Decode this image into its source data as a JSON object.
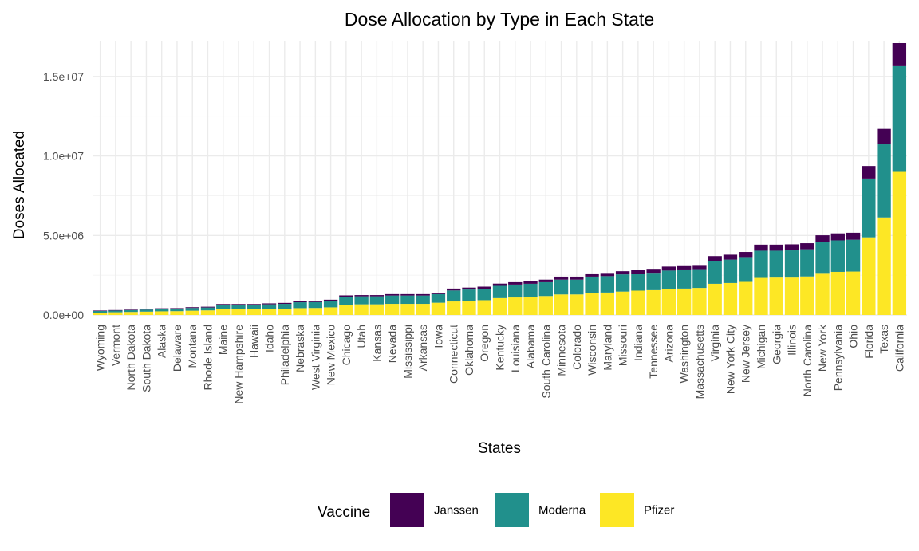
{
  "chart_data": {
    "type": "bar",
    "stacked": true,
    "title": "Dose Allocation by Type in Each State",
    "xlabel": "States",
    "ylabel": "Doses Allocated",
    "ylim": [
      0,
      17200000
    ],
    "yticks": [
      0,
      5000000,
      10000000,
      15000000
    ],
    "ytick_labels": [
      "0.0e+00",
      "5.0e+06",
      "1.0e+07",
      "1.5e+07"
    ],
    "grid": true,
    "legend_position": "bottom",
    "legend_title": "Vaccine",
    "categories": [
      "Wyoming",
      "Vermont",
      "North Dakota",
      "South Dakota",
      "Alaska",
      "Delaware",
      "Montana",
      "Rhode Island",
      "Maine",
      "New Hampshire",
      "Hawaii",
      "Idaho",
      "Philadelphia",
      "Nebraska",
      "West Virginia",
      "New Mexico",
      "Chicago",
      "Utah",
      "Kansas",
      "Nevada",
      "Mississippi",
      "Arkansas",
      "Iowa",
      "Connecticut",
      "Oklahoma",
      "Oregon",
      "Kentucky",
      "Louisiana",
      "Alabama",
      "South Carolina",
      "Minnesota",
      "Colorado",
      "Wisconsin",
      "Maryland",
      "Missouri",
      "Indiana",
      "Tennessee",
      "Arizona",
      "Washington",
      "Massachusetts",
      "Virginia",
      "New York City",
      "New Jersey",
      "Michigan",
      "Georgia",
      "Illinois",
      "North Carolina",
      "New York",
      "Pennsylvania",
      "Ohio",
      "Florida",
      "Texas",
      "California"
    ],
    "series": [
      {
        "name": "Pfizer",
        "color": "#fde725",
        "values": [
          150000,
          170000,
          190000,
          210000,
          230000,
          240000,
          270000,
          290000,
          360000,
          360000,
          360000,
          380000,
          400000,
          430000,
          440000,
          480000,
          650000,
          670000,
          670000,
          700000,
          700000,
          700000,
          770000,
          850000,
          900000,
          930000,
          1060000,
          1100000,
          1130000,
          1190000,
          1290000,
          1290000,
          1390000,
          1410000,
          1470000,
          1530000,
          1560000,
          1610000,
          1660000,
          1700000,
          1960000,
          2010000,
          2080000,
          2330000,
          2350000,
          2350000,
          2420000,
          2640000,
          2710000,
          2730000,
          4880000,
          6130000,
          9000000
        ]
      },
      {
        "name": "Moderna",
        "color": "#21908c",
        "values": [
          100000,
          110000,
          120000,
          130000,
          150000,
          150000,
          170000,
          180000,
          280000,
          280000,
          280000,
          290000,
          300000,
          370000,
          370000,
          410000,
          500000,
          500000,
          500000,
          520000,
          520000,
          520000,
          540000,
          690000,
          700000,
          720000,
          770000,
          810000,
          830000,
          870000,
          930000,
          930000,
          1020000,
          1030000,
          1080000,
          1070000,
          1090000,
          1180000,
          1200000,
          1180000,
          1450000,
          1470000,
          1560000,
          1710000,
          1690000,
          1710000,
          1710000,
          1930000,
          1980000,
          2000000,
          3700000,
          4600000,
          6650000
        ]
      },
      {
        "name": "Janssen",
        "color": "#440154",
        "values": [
          30000,
          30000,
          30000,
          40000,
          40000,
          40000,
          50000,
          50000,
          50000,
          50000,
          50000,
          60000,
          60000,
          60000,
          60000,
          70000,
          80000,
          80000,
          80000,
          90000,
          90000,
          90000,
          90000,
          120000,
          120000,
          130000,
          140000,
          150000,
          150000,
          160000,
          190000,
          190000,
          200000,
          200000,
          200000,
          250000,
          250000,
          250000,
          260000,
          260000,
          290000,
          310000,
          320000,
          380000,
          380000,
          380000,
          380000,
          440000,
          440000,
          440000,
          790000,
          970000,
          1450000
        ]
      }
    ]
  },
  "legend": {
    "title": "Vaccine",
    "items": [
      {
        "label": "Janssen",
        "color": "#440154"
      },
      {
        "label": "Moderna",
        "color": "#21908c"
      },
      {
        "label": "Pfizer",
        "color": "#fde725"
      }
    ]
  }
}
